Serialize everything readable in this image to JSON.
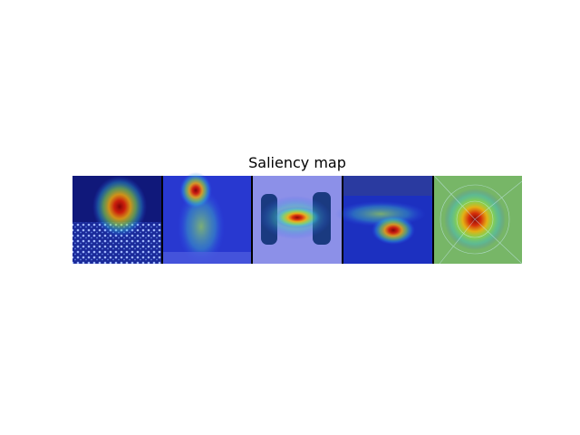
{
  "title": "Saliency map"
}
